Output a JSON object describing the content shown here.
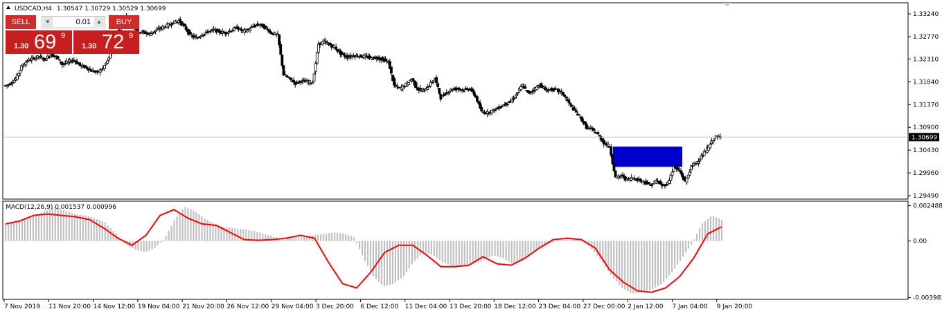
{
  "header": {
    "symbol_label": "USDCAD,H4",
    "ohlc_label": "1.30547 1.30729 1.30529 1.30699",
    "triangle_icon": "triangle-up-icon"
  },
  "trade_widget": {
    "sell_label": "SELL",
    "buy_label": "BUY",
    "lot_value": "0.01",
    "sell_price": {
      "small": "1.30",
      "big": "69",
      "sup": "9"
    },
    "buy_price": {
      "small": "1.30",
      "big": "72",
      "sup": "9"
    },
    "colors": {
      "button": "#d32a2a",
      "price_box": "#c71f1f"
    }
  },
  "macd": {
    "label": "MACD(12,26,9) 0.001537 0.000996",
    "axis_ticks": [
      "0.002488",
      "0.00",
      "-0.003981"
    ]
  },
  "chart_data": [
    {
      "type": "candlestick",
      "title": "USDCAD,H4",
      "y_ticks": [
        "1.33240",
        "1.32770",
        "1.32310",
        "1.31840",
        "1.31370",
        "1.30900",
        "1.30430",
        "1.29960",
        "1.29490"
      ],
      "ylim": [
        1.2942,
        1.3347
      ],
      "current_price": "1.30699",
      "x_ticks": [
        "7 Nov 2019",
        "11 Nov 20:00",
        "14 Nov 12:00",
        "19 Nov 04:00",
        "21 Nov 20:00",
        "26 Nov 12:00",
        "29 Nov 04:00",
        "3 Dec 20:00",
        "6 Dec 12:00",
        "11 Dec 04:00",
        "13 Dec 20:00",
        "18 Dec 12:00",
        "23 Dec 04:00",
        "27 Dec 00:00",
        "2 Jan 12:00",
        "7 Jan 04:00",
        "9 Jan 20:00"
      ],
      "close_path": [
        1.3175,
        1.318,
        1.319,
        1.3215,
        1.3228,
        1.3232,
        1.3236,
        1.323,
        1.324,
        1.3235,
        1.322,
        1.3225,
        1.3229,
        1.3218,
        1.3214,
        1.3207,
        1.3203,
        1.3212,
        1.3232,
        1.3276,
        1.3298,
        1.3318,
        1.3302,
        1.3288,
        1.3286,
        1.3282,
        1.329,
        1.3295,
        1.33,
        1.3306,
        1.331,
        1.3297,
        1.328,
        1.3274,
        1.3282,
        1.3287,
        1.3291,
        1.3287,
        1.3285,
        1.329,
        1.3296,
        1.3288,
        1.3292,
        1.33,
        1.3302,
        1.3294,
        1.3284,
        1.328,
        1.3199,
        1.319,
        1.3181,
        1.3186,
        1.3184,
        1.3183,
        1.3262,
        1.3266,
        1.326,
        1.3252,
        1.324,
        1.3235,
        1.3238,
        1.3237,
        1.3236,
        1.3233,
        1.3234,
        1.323,
        1.3225,
        1.3176,
        1.317,
        1.3178,
        1.319,
        1.3169,
        1.3165,
        1.3177,
        1.3191,
        1.3151,
        1.3162,
        1.3169,
        1.317,
        1.3167,
        1.317,
        1.3153,
        1.3122,
        1.312,
        1.3125,
        1.3131,
        1.3138,
        1.3143,
        1.3158,
        1.3177,
        1.316,
        1.3168,
        1.3178,
        1.3167,
        1.3168,
        1.3167,
        1.3159,
        1.314,
        1.3124,
        1.311,
        1.309,
        1.3085,
        1.3075,
        1.3058,
        1.305,
        1.2986,
        1.299,
        1.2982,
        1.2986,
        1.2981,
        1.2978,
        1.297,
        1.298,
        1.297,
        1.2974,
        1.3008,
        1.3,
        1.2977,
        1.3008,
        1.3019,
        1.3033,
        1.305,
        1.3069,
        1.307
      ],
      "zone": {
        "x_from": "2 Jan 12:00",
        "x_to": "7 Jan 04:00",
        "price_top": 1.30503,
        "price_bottom": 1.30085,
        "color": "#0000cc"
      },
      "colors": {
        "candle": "#000000",
        "price_line": "#c0c0c0"
      }
    },
    {
      "type": "bar",
      "title": "MACD(12,26,9)",
      "ylim": [
        -0.0041,
        0.0028
      ],
      "histogram": [
        0.0012,
        0.0014,
        0.0016,
        0.0018,
        0.0021,
        0.0024,
        0.0021,
        0.0019,
        0.0018,
        0.0016,
        0.0013,
        0.0006,
        -0.0002,
        -0.0006,
        -0.0008,
        -0.0005,
        0.0002,
        0.0015,
        0.0024,
        0.0021,
        0.0016,
        0.0012,
        0.001,
        0.0009,
        0.0008,
        0.0007,
        0.0005,
        0.0003,
        0.0001,
        0.0002,
        0.0003,
        0.0004,
        0.0005,
        0.0006,
        0.0005,
        0.0003,
        -0.0012,
        -0.0025,
        -0.0032,
        -0.003,
        -0.0025,
        -0.0015,
        -0.0008,
        -0.001,
        -0.0015,
        -0.0018,
        -0.0017,
        -0.0016,
        -0.0014,
        -0.001,
        -0.0012,
        -0.0016,
        -0.0014,
        -0.0008,
        -0.0004,
        -0.0001,
        0.0002,
        0.0002,
        0.0001,
        -0.0006,
        -0.0015,
        -0.0025,
        -0.0033,
        -0.0037,
        -0.0036,
        -0.0034,
        -0.003,
        -0.0022,
        -0.0012,
        -0.0002,
        0.0012,
        0.0018,
        0.0015
      ],
      "signal": [
        0.0012,
        0.0014,
        0.0018,
        0.0019,
        0.0018,
        0.0017,
        0.0015,
        0.0009,
        0.0002,
        -0.0003,
        0.0004,
        0.0018,
        0.0022,
        0.0016,
        0.0012,
        0.0011,
        0.0006,
        0.0001,
        5e-05,
        0.0001,
        0.0002,
        0.0004,
        0.0002,
        -0.0015,
        -0.003,
        -0.0033,
        -0.0022,
        -0.0008,
        -0.0003,
        -0.0003,
        -0.001,
        -0.0018,
        -0.0018,
        -0.0017,
        -0.0011,
        -0.0016,
        -0.0017,
        -0.0012,
        -0.0005,
        0.0001,
        0.0002,
        0.0001,
        -0.0005,
        -0.002,
        -0.0029,
        -0.0035,
        -0.0036,
        -0.0033,
        -0.0025,
        -0.0012,
        0.0005,
        0.001
      ],
      "colors": {
        "histogram": "#c0c0c0",
        "signal": "#ff0000"
      }
    }
  ]
}
